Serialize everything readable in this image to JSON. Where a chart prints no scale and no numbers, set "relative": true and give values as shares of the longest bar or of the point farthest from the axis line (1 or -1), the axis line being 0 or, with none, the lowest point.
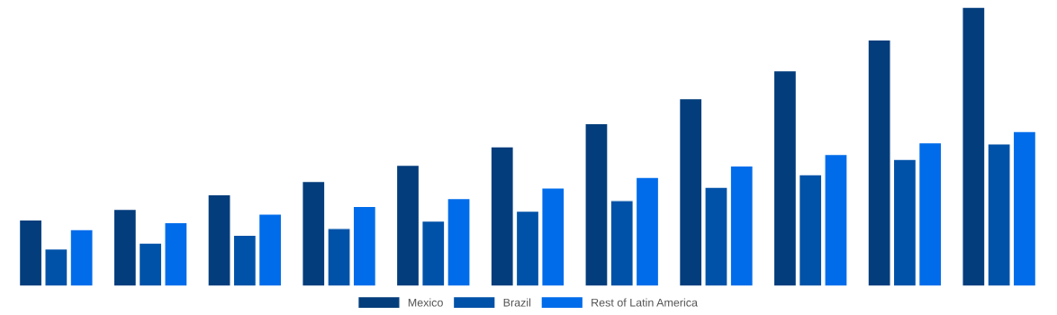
{
  "chart_data": {
    "type": "bar",
    "relative": true,
    "categories": [
      null,
      null,
      null,
      null,
      null,
      null,
      null,
      null,
      null,
      null,
      null
    ],
    "legend": "bottom",
    "grid": false,
    "series": [
      {
        "name": "Mexico",
        "color": "#033d7c",
        "values": [
          0.238,
          0.276,
          0.328,
          0.376,
          0.434,
          0.5,
          0.583,
          0.672,
          0.772,
          0.883,
          1
        ]
      },
      {
        "name": "Brazil",
        "color": "#0052a8",
        "values": [
          0.134,
          0.155,
          0.183,
          0.207,
          0.234,
          0.269,
          0.307,
          0.355,
          0.4,
          0.455,
          0.51
        ]
      },
      {
        "name": "Rest of Latin America",
        "color": "#006cea",
        "values": [
          0.203,
          0.228,
          0.259,
          0.286,
          0.314,
          0.352,
          0.39,
          0.431,
          0.472,
          0.514,
          0.555
        ]
      }
    ]
  }
}
